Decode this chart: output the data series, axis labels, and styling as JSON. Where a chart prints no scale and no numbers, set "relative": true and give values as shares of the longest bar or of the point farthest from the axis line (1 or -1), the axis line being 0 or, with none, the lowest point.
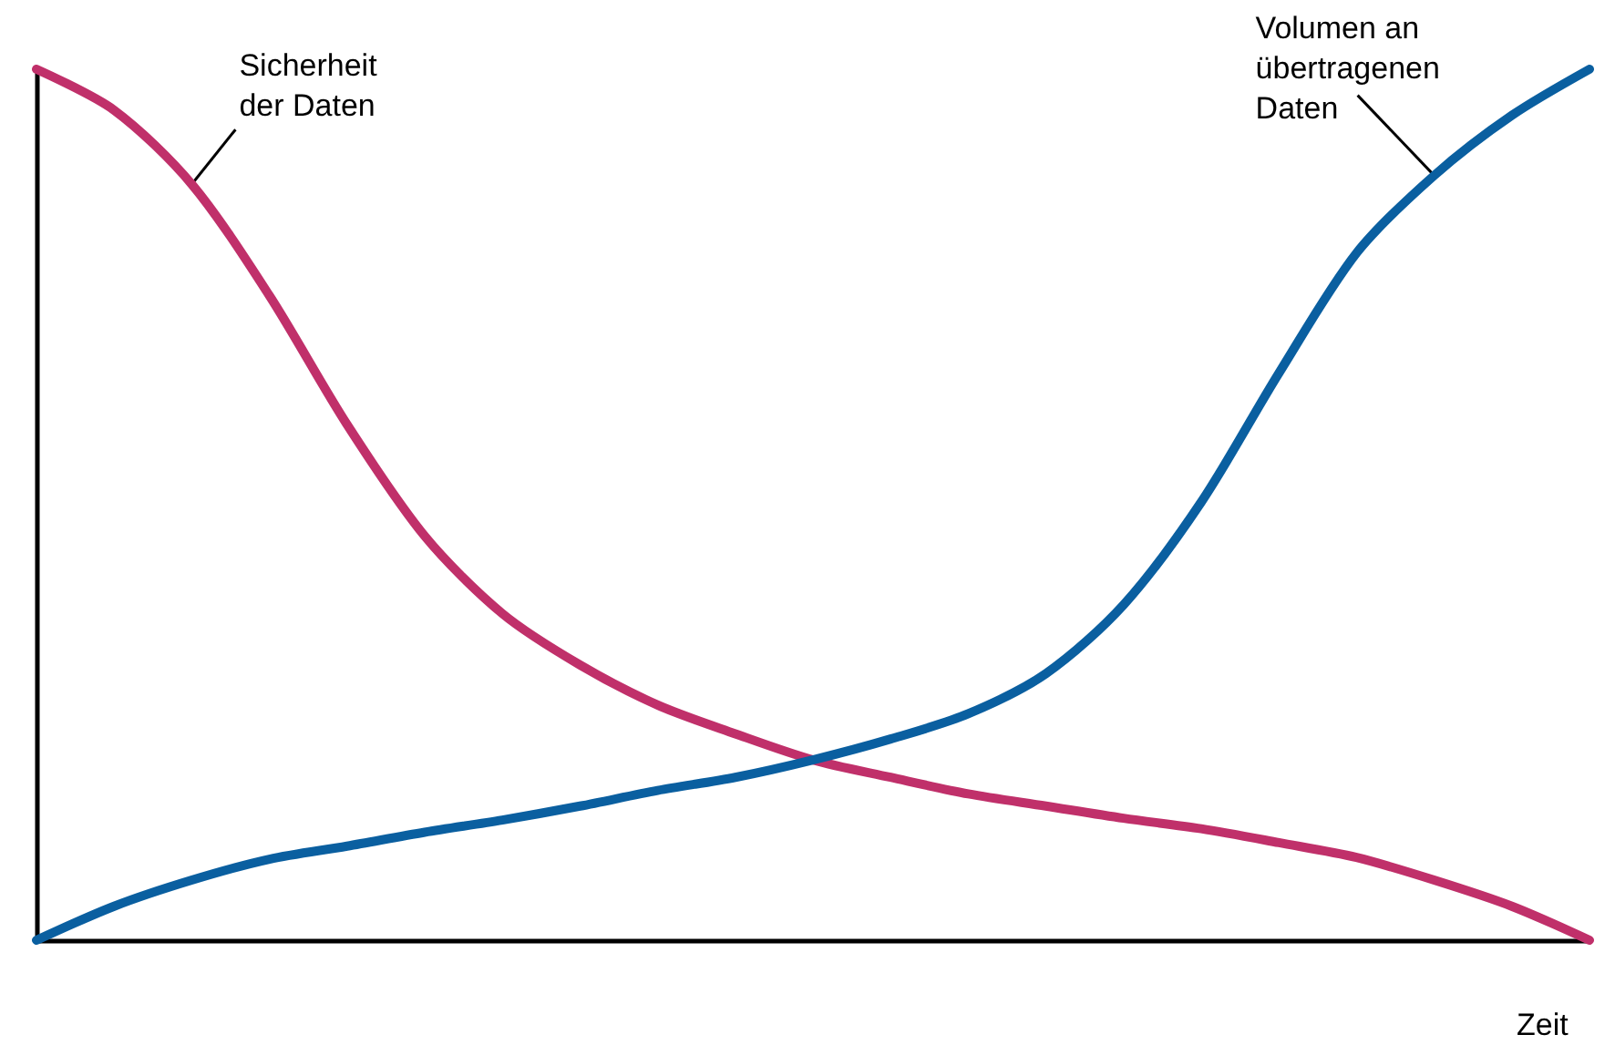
{
  "chart_data": {
    "type": "line",
    "relative": true,
    "xlabel": "Zeit",
    "categories": [
      null,
      null,
      null,
      null,
      null,
      null,
      null,
      null,
      null,
      null,
      null,
      null,
      null,
      null,
      null,
      null,
      null,
      null,
      null,
      null,
      null
    ],
    "series": [
      {
        "name": "Sicherheit der Daten",
        "color": "#c0306a",
        "values": [
          1.0,
          0.953,
          0.868,
          0.74,
          0.592,
          0.464,
          0.375,
          0.316,
          0.27,
          0.237,
          0.207,
          0.187,
          0.168,
          0.154,
          0.14,
          0.128,
          0.112,
          0.095,
          0.069,
          0.039,
          0
        ]
      },
      {
        "name": "Volumen an übertragenen Daten",
        "color": "#0a5fa0",
        "values": [
          0,
          0.039,
          0.069,
          0.093,
          0.108,
          0.124,
          0.138,
          0.154,
          0.172,
          0.187,
          0.207,
          0.231,
          0.26,
          0.306,
          0.385,
          0.503,
          0.651,
          0.789,
          0.878,
          0.947,
          1.0
        ]
      }
    ],
    "grid": false,
    "legend": false,
    "marker": "none",
    "line_style": "solid"
  }
}
